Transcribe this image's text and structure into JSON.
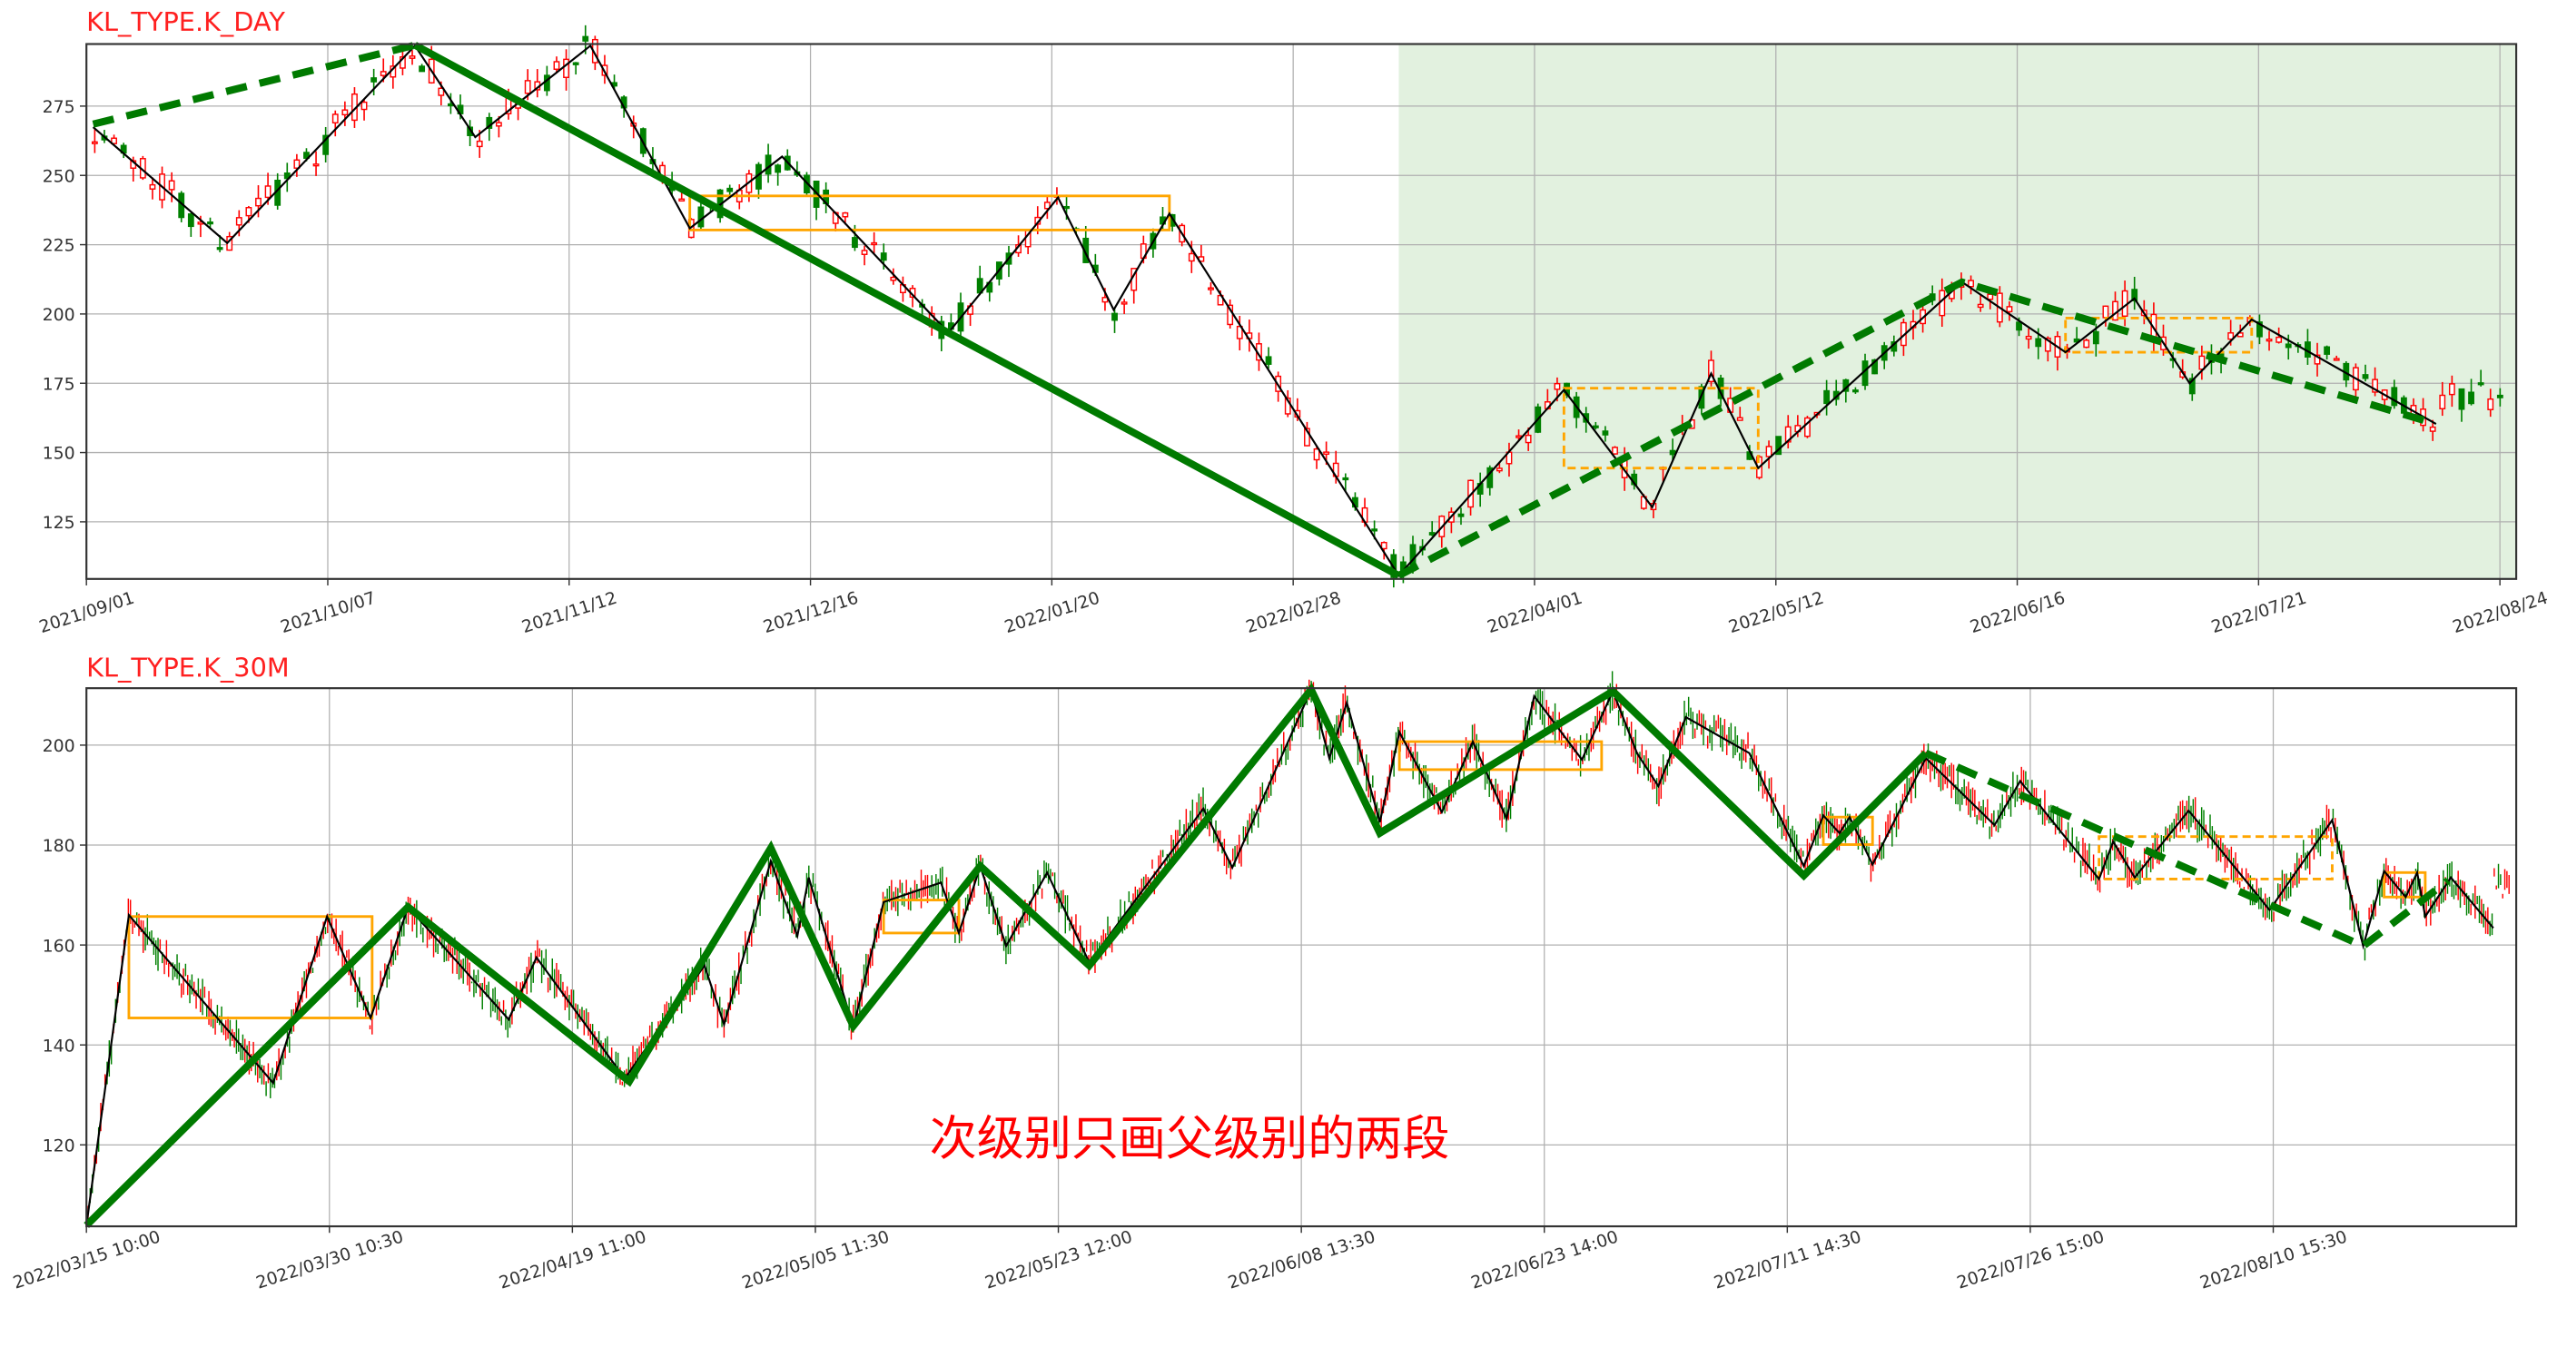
{
  "annotation": "次级别只画父级别的两段",
  "colors": {
    "title": "#ff2020",
    "up_candle": "#ff0000",
    "down_candle": "#008000",
    "bi": "#000000",
    "seg": "#007a00",
    "zs": "#ffa500",
    "shade": "#e2f1df",
    "annotation": "#ff0000"
  },
  "chart_data": [
    {
      "type": "candlestick",
      "title": "KL_TYPE.K_DAY",
      "ylim": [
        104.4,
        297.4
      ],
      "yticks": [
        125,
        150,
        175,
        200,
        225,
        250,
        275
      ],
      "xticks": [
        "2021/09/01",
        "2021/10/07",
        "2021/11/12",
        "2021/12/16",
        "2022/01/20",
        "2022/02/28",
        "2022/04/01",
        "2022/05/12",
        "2022/06/16",
        "2022/07/21",
        "2022/08/24"
      ],
      "grid": true,
      "shaded_region_from": "2022/03/14",
      "bi": [
        [
          "2021/09/02",
          267.4
        ],
        [
          "2021/09/22",
          225.6
        ],
        [
          "2021/10/20",
          296.8
        ],
        [
          "2021/10/29",
          263.8
        ],
        [
          "2021/11/15",
          296.8
        ],
        [
          "2021/11/29",
          230.9
        ],
        [
          "2021/12/12",
          256.8
        ],
        [
          "2022/01/05",
          193.2
        ],
        [
          "2022/01/21",
          242.0
        ],
        [
          "2022/01/30",
          201.5
        ],
        [
          "2022/02/08",
          236.2
        ],
        [
          "2022/03/14",
          105.6
        ],
        [
          "2022/04/06",
          172.6
        ],
        [
          "2022/04/21",
          130.3
        ],
        [
          "2022/05/01",
          178.5
        ],
        [
          "2022/05/09",
          144.4
        ],
        [
          "2022/06/08",
          211.5
        ],
        [
          "2022/06/23",
          186.2
        ],
        [
          "2022/07/03",
          205.6
        ],
        [
          "2022/07/11",
          175.0
        ],
        [
          "2022/07/20",
          198.0
        ],
        [
          "2022/08/15",
          160.3
        ]
      ],
      "seg": [
        {
          "style": "dashed",
          "points": [
            [
              "2021/09/02",
              268.5
            ],
            [
              "2021/10/20",
              297.0
            ]
          ]
        },
        {
          "style": "solid",
          "points": [
            [
              "2021/10/20",
              297.0
            ],
            [
              "2022/03/14",
              105.6
            ]
          ]
        },
        {
          "style": "dashed",
          "points": [
            [
              "2022/03/14",
              105.6
            ],
            [
              "2022/06/08",
              211.5
            ],
            [
              "2022/08/15",
              160.3
            ]
          ]
        }
      ],
      "zs": [
        {
          "from": "2021/11/29",
          "to": "2022/02/08",
          "low": 230.3,
          "high": 242.6,
          "style": "solid"
        },
        {
          "from": "2022/04/06",
          "to": "2022/05/09",
          "low": 144.4,
          "high": 173.2,
          "style": "dashed"
        },
        {
          "from": "2022/06/23",
          "to": "2022/07/20",
          "low": 186.2,
          "high": 198.5,
          "style": "dashed"
        }
      ],
      "tail_level": 170
    },
    {
      "type": "candlestick",
      "title": "KL_TYPE.K_30M",
      "ylim": [
        103.7,
        211.4
      ],
      "yticks": [
        120,
        140,
        160,
        180,
        200
      ],
      "xticks": [
        "2022/03/15 10:00",
        "2022/03/30 10:30",
        "2022/04/19 11:00",
        "2022/05/05 11:30",
        "2022/05/23 12:00",
        "2022/06/08 13:30",
        "2022/06/23 14:00",
        "2022/07/11 14:30",
        "2022/07/26 15:00",
        "2022/08/10 15:30"
      ],
      "grid": true,
      "bi": [
        [
          "2022/03/15 10:00",
          103.9
        ],
        [
          "2022/03/18 01:00",
          166.0
        ],
        [
          "2022/03/26 23:00",
          132.4
        ],
        [
          "2022/03/30 07:00",
          165.7
        ],
        [
          "2022/04/02 20:00",
          145.4
        ],
        [
          "2022/04/05 22:00",
          167.6
        ],
        [
          "2022/04/14 05:00",
          145.1
        ],
        [
          "2022/04/16 12:00",
          157.5
        ],
        [
          "2022/04/22 22:00",
          133.3
        ],
        [
          "2022/04/28 04:00",
          155.9
        ],
        [
          "2022/04/29 11:00",
          144.1
        ],
        [
          "2022/05/02 13:00",
          176.8
        ],
        [
          "2022/05/04 07:00",
          161.8
        ],
        [
          "2022/05/05 01:00",
          173.5
        ],
        [
          "2022/05/08 07:00",
          143.5
        ],
        [
          "2022/05/10 13:00",
          168.6
        ],
        [
          "2022/05/14 19:00",
          172.5
        ],
        [
          "2022/05/16 03:00",
          162.4
        ],
        [
          "2022/05/17 17:00",
          175.8
        ],
        [
          "2022/05/19 15:00",
          159.8
        ],
        [
          "2022/05/22 16:00",
          174.5
        ],
        [
          "2022/05/25 13:00",
          156.5
        ],
        [
          "2022/06/02 02:00",
          187.3
        ],
        [
          "2022/06/04 00:00",
          175.5
        ],
        [
          "2022/06/09 04:00",
          211.1
        ],
        [
          "2022/06/10 07:00",
          197.4
        ],
        [
          "2022/06/11 09:00",
          208.5
        ],
        [
          "2022/06/13 10:00",
          184.6
        ],
        [
          "2022/06/14 15:00",
          202.6
        ],
        [
          "2022/06/17 06:00",
          186.6
        ],
        [
          "2022/06/19 04:00",
          200.7
        ],
        [
          "2022/06/21 06:00",
          185.3
        ],
        [
          "2022/06/22 23:00",
          209.8
        ],
        [
          "2022/06/26 09:00",
          197.1
        ],
        [
          "2022/06/28 16:00",
          210.8
        ],
        [
          "2022/06/30 11:00",
          198.4
        ],
        [
          "2022/07/02 01:00",
          191.8
        ],
        [
          "2022/07/04 02:00",
          205.6
        ],
        [
          "2022/07/08 19:00",
          198.4
        ],
        [
          "2022/07/12 15:00",
          175.8
        ],
        [
          "2022/07/13 20:00",
          185.9
        ],
        [
          "2022/07/14 20:00",
          182.4
        ],
        [
          "2022/07/15 11:00",
          185.6
        ],
        [
          "2022/07/16 21:00",
          176.1
        ],
        [
          "2022/07/20 04:00",
          197.4
        ],
        [
          "2022/07/24 10:00",
          184.0
        ],
        [
          "2022/07/26 00:00",
          192.8
        ],
        [
          "2022/07/30 21:00",
          173.2
        ],
        [
          "2022/07/31 18:00",
          180.7
        ],
        [
          "2022/08/02 02:00",
          173.5
        ],
        [
          "2022/08/05 10:00",
          186.9
        ],
        [
          "2022/08/10 10:00",
          167.0
        ],
        [
          "2022/08/14 07:00",
          185.0
        ],
        [
          "2022/08/16 05:00",
          159.8
        ],
        [
          "2022/08/17 12:00",
          174.8
        ],
        [
          "2022/08/18 20:00",
          169.6
        ],
        [
          "2022/08/19 13:00",
          174.5
        ],
        [
          "2022/08/20 01:00",
          165.7
        ],
        [
          "2022/08/21 15:00",
          173.5
        ],
        [
          "2022/08/24 06:00",
          163.4
        ]
      ],
      "seg": [
        {
          "style": "solid",
          "points": [
            [
              "2022/03/15 10:00",
              103.9
            ],
            [
              "2022/04/05 22:00",
              167.6
            ],
            [
              "2022/04/23 05:00",
              132.7
            ],
            [
              "2022/05/02 13:00",
              179.4
            ],
            [
              "2022/05/08 07:00",
              143.8
            ],
            [
              "2022/05/17 17:00",
              175.8
            ],
            [
              "2022/05/25 13:00",
              155.9
            ],
            [
              "2022/06/09 04:00",
              211.1
            ],
            [
              "2022/06/13 10:00",
              182.4
            ],
            [
              "2022/06/28 16:00",
              210.8
            ],
            [
              "2022/07/12 15:00",
              173.9
            ],
            [
              "2022/07/20 04:00",
              198.4
            ]
          ]
        },
        {
          "style": "dashed",
          "points": [
            [
              "2022/07/20 04:00",
              198.4
            ],
            [
              "2022/08/16 05:00",
              159.8
            ],
            [
              "2022/08/21 11:00",
              172.9
            ]
          ]
        }
      ],
      "zs": [
        {
          "from": "2022/03/18 01:00",
          "to": "2022/04/02 23:00",
          "low": 145.4,
          "high": 165.7,
          "style": "solid"
        },
        {
          "from": "2022/05/10 13:00",
          "to": "2022/05/16 03:00",
          "low": 162.4,
          "high": 169.0,
          "style": "solid"
        },
        {
          "from": "2022/06/14 15:00",
          "to": "2022/06/27 20:00",
          "low": 195.1,
          "high": 200.7,
          "style": "solid"
        },
        {
          "from": "2022/07/13 20:00",
          "to": "2022/07/16 21:00",
          "low": 180.1,
          "high": 185.6,
          "style": "solid"
        },
        {
          "from": "2022/07/30 21:00",
          "to": "2022/08/14 07:00",
          "low": 173.2,
          "high": 181.7,
          "style": "dashed"
        },
        {
          "from": "2022/08/17 12:00",
          "to": "2022/08/20 01:00",
          "low": 169.6,
          "high": 174.5,
          "style": "solid"
        }
      ],
      "tail_level": 172
    }
  ]
}
